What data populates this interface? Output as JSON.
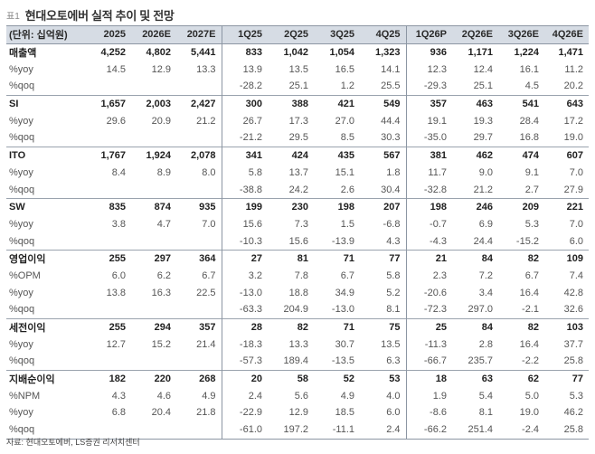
{
  "title": {
    "tag": "표1",
    "text": "현대오토에버 실적 추이 및 전망"
  },
  "header": [
    "(단위: 십억원)",
    "2025",
    "2026E",
    "2027E",
    "1Q25",
    "2Q25",
    "3Q25",
    "4Q25",
    "1Q26P",
    "2Q26E",
    "3Q26E",
    "4Q26E"
  ],
  "rows": [
    [
      "매출액",
      "4,252",
      "4,802",
      "5,441",
      "833",
      "1,042",
      "1,054",
      "1,323",
      "936",
      "1,171",
      "1,224",
      "1,471"
    ],
    [
      "%yoy",
      "14.5",
      "12.9",
      "13.3",
      "13.9",
      "13.5",
      "16.5",
      "14.1",
      "12.3",
      "12.4",
      "16.1",
      "11.2"
    ],
    [
      "%qoq",
      "",
      "",
      "",
      "-28.2",
      "25.1",
      "1.2",
      "25.5",
      "-29.3",
      "25.1",
      "4.5",
      "20.2"
    ],
    [
      "SI",
      "1,657",
      "2,003",
      "2,427",
      "300",
      "388",
      "421",
      "549",
      "357",
      "463",
      "541",
      "643"
    ],
    [
      "%yoy",
      "29.6",
      "20.9",
      "21.2",
      "26.7",
      "17.3",
      "27.0",
      "44.4",
      "19.1",
      "19.3",
      "28.4",
      "17.2"
    ],
    [
      "%qoq",
      "",
      "",
      "",
      "-21.2",
      "29.5",
      "8.5",
      "30.3",
      "-35.0",
      "29.7",
      "16.8",
      "19.0"
    ],
    [
      "ITO",
      "1,767",
      "1,924",
      "2,078",
      "341",
      "424",
      "435",
      "567",
      "381",
      "462",
      "474",
      "607"
    ],
    [
      "%yoy",
      "8.4",
      "8.9",
      "8.0",
      "5.8",
      "13.7",
      "15.1",
      "1.8",
      "11.7",
      "9.0",
      "9.1",
      "7.0"
    ],
    [
      "%qoq",
      "",
      "",
      "",
      "-38.8",
      "24.2",
      "2.6",
      "30.4",
      "-32.8",
      "21.2",
      "2.7",
      "27.9"
    ],
    [
      "SW",
      "835",
      "874",
      "935",
      "199",
      "230",
      "198",
      "207",
      "198",
      "246",
      "209",
      "221"
    ],
    [
      "%yoy",
      "3.8",
      "4.7",
      "7.0",
      "15.6",
      "7.3",
      "1.5",
      "-6.8",
      "-0.7",
      "6.9",
      "5.3",
      "7.0"
    ],
    [
      "%qoq",
      "",
      "",
      "",
      "-10.3",
      "15.6",
      "-13.9",
      "4.3",
      "-4.3",
      "24.4",
      "-15.2",
      "6.0"
    ],
    [
      "영업이익",
      "255",
      "297",
      "364",
      "27",
      "81",
      "71",
      "77",
      "21",
      "84",
      "82",
      "109"
    ],
    [
      "%OPM",
      "6.0",
      "6.2",
      "6.7",
      "3.2",
      "7.8",
      "6.7",
      "5.8",
      "2.3",
      "7.2",
      "6.7",
      "7.4"
    ],
    [
      "%yoy",
      "13.8",
      "16.3",
      "22.5",
      "-13.0",
      "18.8",
      "34.9",
      "5.2",
      "-20.6",
      "3.4",
      "16.4",
      "42.8"
    ],
    [
      "%qoq",
      "",
      "",
      "",
      "-63.3",
      "204.9",
      "-13.0",
      "8.1",
      "-72.3",
      "297.0",
      "-2.1",
      "32.6"
    ],
    [
      "세전이익",
      "255",
      "294",
      "357",
      "28",
      "82",
      "71",
      "75",
      "25",
      "84",
      "82",
      "103"
    ],
    [
      "%yoy",
      "12.7",
      "15.2",
      "21.4",
      "-18.3",
      "13.3",
      "30.7",
      "13.5",
      "-11.3",
      "2.8",
      "16.4",
      "37.7"
    ],
    [
      "%qoq",
      "",
      "",
      "",
      "-57.3",
      "189.4",
      "-13.5",
      "6.3",
      "-66.7",
      "235.7",
      "-2.2",
      "25.8"
    ],
    [
      "지배순이익",
      "182",
      "220",
      "268",
      "20",
      "58",
      "52",
      "53",
      "18",
      "63",
      "62",
      "77"
    ],
    [
      "%NPM",
      "4.3",
      "4.6",
      "4.9",
      "2.4",
      "5.6",
      "4.9",
      "4.0",
      "1.9",
      "5.4",
      "5.0",
      "5.3"
    ],
    [
      "%yoy",
      "6.8",
      "20.4",
      "21.8",
      "-22.9",
      "12.9",
      "18.5",
      "6.0",
      "-8.6",
      "8.1",
      "19.0",
      "46.2"
    ],
    [
      "%qoq",
      "",
      "",
      "",
      "-61.0",
      "197.2",
      "-11.1",
      "2.4",
      "-66.2",
      "251.4",
      "-2.4",
      "25.8"
    ]
  ],
  "source": "자료: 현대오토에버, LS증권 리서치센터"
}
